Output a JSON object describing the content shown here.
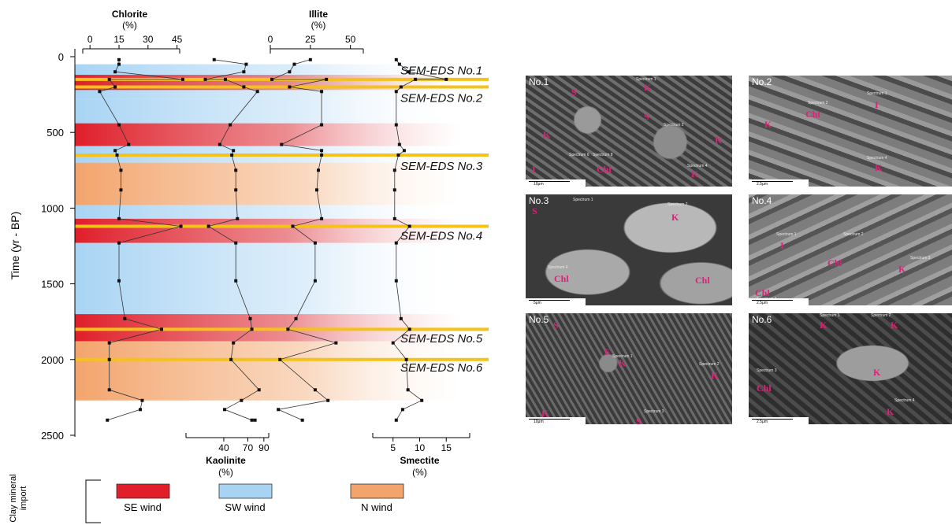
{
  "chart_data": {
    "type": "line",
    "ylabel": "Time (yr - BP)",
    "y_ticks": [
      "0",
      "500",
      "1000",
      "1500",
      "2000",
      "2500"
    ],
    "ylim": [
      0,
      2500
    ],
    "series": [
      {
        "name": "Chlorite",
        "unit": "(%)",
        "axis_position": "top",
        "ticks": [
          "0",
          "15",
          "30",
          "45"
        ],
        "xlim": [
          -7,
          48
        ],
        "points": [
          [
            15,
            20
          ],
          [
            15,
            50
          ],
          [
            13,
            100
          ],
          [
            48,
            150
          ],
          [
            10,
            150
          ],
          [
            13,
            200
          ],
          [
            5,
            230
          ],
          [
            15,
            450
          ],
          [
            20,
            580
          ],
          [
            13,
            620
          ],
          [
            14,
            650
          ],
          [
            16,
            750
          ],
          [
            16,
            880
          ],
          [
            15,
            1070
          ],
          [
            47,
            1120
          ],
          [
            15,
            1230
          ],
          [
            15,
            1480
          ],
          [
            18,
            1730
          ],
          [
            37,
            1800
          ],
          [
            10,
            1890
          ],
          [
            10,
            2000
          ],
          [
            10,
            2200
          ],
          [
            27,
            2270
          ],
          [
            26,
            2330
          ],
          [
            9,
            2400
          ]
        ]
      },
      {
        "name": "Illite",
        "unit": "(%)",
        "axis_position": "top",
        "ticks": [
          "0",
          "25",
          "50"
        ],
        "xlim": [
          0,
          60
        ],
        "points": [
          [
            25,
            20
          ],
          [
            15,
            50
          ],
          [
            12,
            100
          ],
          [
            1,
            150
          ],
          [
            35,
            150
          ],
          [
            12,
            200
          ],
          [
            32,
            230
          ],
          [
            32,
            450
          ],
          [
            7,
            580
          ],
          [
            32,
            620
          ],
          [
            32,
            650
          ],
          [
            30,
            750
          ],
          [
            29,
            880
          ],
          [
            32,
            1070
          ],
          [
            14,
            1120
          ],
          [
            28,
            1230
          ],
          [
            28,
            1480
          ],
          [
            16,
            1730
          ],
          [
            11,
            1800
          ],
          [
            41,
            1890
          ],
          [
            6,
            2000
          ],
          [
            28,
            2200
          ],
          [
            36,
            2270
          ],
          [
            5,
            2330
          ],
          [
            20,
            2400
          ]
        ]
      },
      {
        "name": "Kaolinite",
        "unit": "(%)",
        "axis_position": "bottom",
        "ticks": [
          "40",
          "70",
          "90"
        ],
        "xlim": [
          -15,
          100
        ],
        "points": [
          [
            28,
            20
          ],
          [
            68,
            50
          ],
          [
            65,
            100
          ],
          [
            17,
            150
          ],
          [
            42,
            150
          ],
          [
            65,
            200
          ],
          [
            82,
            230
          ],
          [
            48,
            450
          ],
          [
            35,
            580
          ],
          [
            52,
            620
          ],
          [
            50,
            650
          ],
          [
            55,
            750
          ],
          [
            55,
            880
          ],
          [
            57,
            1070
          ],
          [
            21,
            1120
          ],
          [
            55,
            1230
          ],
          [
            55,
            1480
          ],
          [
            73,
            1730
          ],
          [
            75,
            1800
          ],
          [
            52,
            1890
          ],
          [
            49,
            2000
          ],
          [
            84,
            2200
          ],
          [
            62,
            2270
          ],
          [
            41,
            2330
          ],
          [
            75,
            2400
          ],
          [
            79,
            2400
          ]
        ]
      },
      {
        "name": "Smectite",
        "unit": "(%)",
        "axis_position": "bottom",
        "ticks": [
          "5",
          "10",
          "15"
        ],
        "xlim": [
          0,
          20
        ],
        "points": [
          [
            5.6,
            20
          ],
          [
            6.2,
            50
          ],
          [
            8,
            100
          ],
          [
            15,
            150
          ],
          [
            9.2,
            150
          ],
          [
            6.5,
            200
          ],
          [
            5.6,
            230
          ],
          [
            5.6,
            450
          ],
          [
            6.2,
            580
          ],
          [
            7.1,
            620
          ],
          [
            6.0,
            650
          ],
          [
            5.3,
            750
          ],
          [
            5.3,
            880
          ],
          [
            5.3,
            1070
          ],
          [
            8.1,
            1120
          ],
          [
            5.6,
            1230
          ],
          [
            5.6,
            1480
          ],
          [
            6.5,
            1730
          ],
          [
            8.1,
            1800
          ],
          [
            5.0,
            1890
          ],
          [
            7.5,
            2000
          ],
          [
            7.8,
            2200
          ],
          [
            10.4,
            2270
          ],
          [
            6.8,
            2330
          ],
          [
            5.6,
            2400
          ]
        ]
      }
    ],
    "bands": [
      {
        "from": 50,
        "to": 280,
        "wind": "SW wind"
      },
      {
        "from": 120,
        "to": 220,
        "wind": "SE wind"
      },
      {
        "from": 280,
        "to": 440,
        "wind": "SW wind"
      },
      {
        "from": 440,
        "to": 590,
        "wind": "SE wind"
      },
      {
        "from": 590,
        "to": 700,
        "wind": "SW wind"
      },
      {
        "from": 700,
        "to": 980,
        "wind": "N wind"
      },
      {
        "from": 980,
        "to": 1070,
        "wind": "SW wind"
      },
      {
        "from": 1070,
        "to": 1230,
        "wind": "SE wind"
      },
      {
        "from": 1230,
        "to": 1700,
        "wind": "SW wind"
      },
      {
        "from": 1700,
        "to": 1880,
        "wind": "SE wind"
      },
      {
        "from": 1880,
        "to": 2270,
        "wind": "N wind"
      }
    ],
    "sem_eds_lines": [
      {
        "time": 150,
        "label": "SEM-EDS No.1",
        "label_time": 92
      },
      {
        "time": 200,
        "label": "SEM-EDS No.2",
        "label_time": 272
      },
      {
        "time": 650,
        "label": "SEM-EDS No.3",
        "label_time": 722
      },
      {
        "time": 1120,
        "label": "SEM-EDS No.4",
        "label_time": 1182
      },
      {
        "time": 1800,
        "label": "SEM-EDS No.5",
        "label_time": 1862
      },
      {
        "time": 2000,
        "label": "SEM-EDS No.6",
        "label_time": 2052
      }
    ],
    "legend": {
      "title_line1": "Clay mineral",
      "title_line2": "import",
      "items": [
        {
          "label": "SE wind",
          "color": "#e01f2a"
        },
        {
          "label": "SW wind",
          "color": "#a8d4f4"
        },
        {
          "label": "N wind",
          "color": "#f3a46c"
        }
      ]
    },
    "colors": {
      "se": "#e01f2a",
      "sw": "#a8d4f4",
      "n": "#f3a46c",
      "line": "#f4c21a"
    }
  },
  "sem_panels": [
    {
      "label": "No.1",
      "minerals": [
        {
          "t": "I",
          "x": 8,
          "y": 112
        },
        {
          "t": "K",
          "x": 22,
          "y": 68
        },
        {
          "t": "S",
          "x": 58,
          "y": 14
        },
        {
          "t": "K",
          "x": 150,
          "y": 8
        },
        {
          "t": "S",
          "x": 150,
          "y": 45
        },
        {
          "t": "Chl",
          "x": 90,
          "y": 112
        },
        {
          "t": "K",
          "x": 240,
          "y": 75
        },
        {
          "t": "K",
          "x": 210,
          "y": 118
        }
      ],
      "specs": [
        {
          "t": "Spectrum 1",
          "x": 140,
          "y": 2
        },
        {
          "t": "Spectrum 2",
          "x": 175,
          "y": 60
        },
        {
          "t": "Spectrum 4",
          "x": 205,
          "y": 112
        },
        {
          "t": "Spectrum 6",
          "x": 55,
          "y": 98
        },
        {
          "t": "Spectrum 8",
          "x": 85,
          "y": 98
        }
      ],
      "scale": "10μm"
    },
    {
      "label": "No.2",
      "minerals": [
        {
          "t": "K",
          "x": 20,
          "y": 55
        },
        {
          "t": "Chl",
          "x": 72,
          "y": 42
        },
        {
          "t": "I",
          "x": 160,
          "y": 30
        },
        {
          "t": "K",
          "x": 160,
          "y": 110
        }
      ],
      "specs": [
        {
          "t": "Spectrum 1",
          "x": 150,
          "y": 20
        },
        {
          "t": "Spectrum 2",
          "x": 75,
          "y": 32
        },
        {
          "t": "Spectrum 4",
          "x": 150,
          "y": 102
        }
      ],
      "scale": "2.5μm"
    },
    {
      "label": "No.3",
      "minerals": [
        {
          "t": "S",
          "x": 8,
          "y": 14
        },
        {
          "t": "K",
          "x": 185,
          "y": 22
        },
        {
          "t": "Chl",
          "x": 36,
          "y": 100
        },
        {
          "t": "Chl",
          "x": 215,
          "y": 102
        }
      ],
      "specs": [
        {
          "t": "Spectrum 1",
          "x": 60,
          "y": 4
        },
        {
          "t": "Spectrum 2",
          "x": 180,
          "y": 10
        },
        {
          "t": "Spectrum 4",
          "x": 28,
          "y": 90
        }
      ],
      "scale": "5μm"
    },
    {
      "label": "No.4",
      "minerals": [
        {
          "t": "I",
          "x": 40,
          "y": 58
        },
        {
          "t": "Chl",
          "x": 100,
          "y": 80
        },
        {
          "t": "K",
          "x": 190,
          "y": 88
        },
        {
          "t": "Chl",
          "x": 8,
          "y": 118
        }
      ],
      "specs": [
        {
          "t": "Spectrum 1",
          "x": 35,
          "y": 48
        },
        {
          "t": "Spectrum 2",
          "x": 120,
          "y": 48
        },
        {
          "t": "Spectrum 3",
          "x": 205,
          "y": 78
        },
        {
          "t": "Spectrum 4",
          "x": 10,
          "y": 130
        }
      ],
      "scale": "2.5μm"
    },
    {
      "label": "No.5",
      "minerals": [
        {
          "t": "S",
          "x": 35,
          "y": 8
        },
        {
          "t": "S",
          "x": 100,
          "y": 42
        },
        {
          "t": "K",
          "x": 118,
          "y": 56
        },
        {
          "t": "K",
          "x": 235,
          "y": 72
        },
        {
          "t": "K",
          "x": 20,
          "y": 120
        },
        {
          "t": "S",
          "x": 140,
          "y": 130
        }
      ],
      "specs": [
        {
          "t": "Spectrum 1",
          "x": 110,
          "y": 52
        },
        {
          "t": "Spectrum 2",
          "x": 220,
          "y": 62
        },
        {
          "t": "Spectrum 3",
          "x": 150,
          "y": 122
        }
      ],
      "scale": "10μm"
    },
    {
      "label": "No.6",
      "minerals": [
        {
          "t": "K",
          "x": 90,
          "y": 8
        },
        {
          "t": "K",
          "x": 180,
          "y": 8
        },
        {
          "t": "K",
          "x": 158,
          "y": 68
        },
        {
          "t": "Chl",
          "x": 10,
          "y": 88
        },
        {
          "t": "K",
          "x": 175,
          "y": 118
        }
      ],
      "specs": [
        {
          "t": "Spectrum 1",
          "x": 90,
          "y": 0
        },
        {
          "t": "Spectrum 2",
          "x": 155,
          "y": 0
        },
        {
          "t": "Spectrum 3",
          "x": 10,
          "y": 70
        },
        {
          "t": "Spectrum 4",
          "x": 185,
          "y": 108
        }
      ],
      "scale": "2.5μm"
    }
  ]
}
